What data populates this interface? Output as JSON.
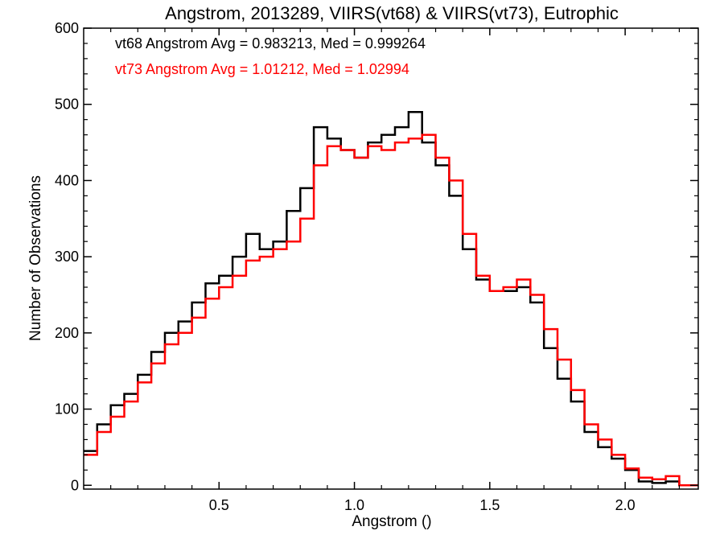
{
  "chart_data": {
    "type": "line",
    "title": "Angstrom, 2013289, VIIRS(vt68) & VIIRS(vt73), Eutrophic",
    "xlabel": "Angstrom ()",
    "ylabel": "Number of Observations",
    "xlim": [
      0.0,
      2.27
    ],
    "ylim": [
      -5,
      600
    ],
    "x_ticks": [
      0.5,
      1.0,
      1.5,
      2.0
    ],
    "x_tick_labels": [
      "0.5",
      "1.0",
      "1.5",
      "2.0"
    ],
    "y_ticks": [
      0,
      100,
      200,
      300,
      400,
      500,
      600
    ],
    "y_tick_labels": [
      "0",
      "100",
      "200",
      "300",
      "400",
      "500",
      "600"
    ],
    "grid": false,
    "annotations": [
      {
        "text": "vt68 Angstrom Avg = 0.983213, Med = 0.999264",
        "color": "#000000"
      },
      {
        "text": "vt73 Angstrom Avg = 1.01212, Med = 1.02994",
        "color": "#ff0000"
      }
    ],
    "series": [
      {
        "color": "#000000",
        "x": [
          0.0,
          0.05,
          0.1,
          0.15,
          0.2,
          0.25,
          0.3,
          0.35,
          0.4,
          0.45,
          0.5,
          0.55,
          0.6,
          0.65,
          0.7,
          0.75,
          0.8,
          0.85,
          0.9,
          0.95,
          1.0,
          1.05,
          1.1,
          1.15,
          1.2,
          1.25,
          1.3,
          1.35,
          1.4,
          1.45,
          1.5,
          1.55,
          1.6,
          1.65,
          1.7,
          1.75,
          1.8,
          1.85,
          1.9,
          1.95,
          2.0,
          2.05,
          2.1,
          2.15,
          2.2,
          2.25
        ],
        "y": [
          45,
          80,
          105,
          120,
          145,
          175,
          200,
          215,
          240,
          265,
          275,
          300,
          330,
          310,
          320,
          360,
          390,
          470,
          455,
          440,
          430,
          450,
          460,
          470,
          490,
          450,
          420,
          380,
          310,
          270,
          255,
          255,
          260,
          240,
          180,
          140,
          110,
          70,
          50,
          35,
          20,
          5,
          3,
          5,
          0,
          0
        ]
      },
      {
        "color": "#ff0000",
        "x": [
          0.0,
          0.05,
          0.1,
          0.15,
          0.2,
          0.25,
          0.3,
          0.35,
          0.4,
          0.45,
          0.5,
          0.55,
          0.6,
          0.65,
          0.7,
          0.75,
          0.8,
          0.85,
          0.9,
          0.95,
          1.0,
          1.05,
          1.1,
          1.15,
          1.2,
          1.25,
          1.3,
          1.35,
          1.4,
          1.45,
          1.5,
          1.55,
          1.6,
          1.65,
          1.7,
          1.75,
          1.8,
          1.85,
          1.9,
          1.95,
          2.0,
          2.05,
          2.1,
          2.15,
          2.2,
          2.25
        ],
        "y": [
          40,
          70,
          90,
          110,
          135,
          160,
          185,
          200,
          220,
          245,
          260,
          275,
          295,
          300,
          310,
          320,
          350,
          420,
          445,
          440,
          430,
          445,
          440,
          450,
          455,
          460,
          430,
          400,
          330,
          275,
          255,
          260,
          270,
          250,
          205,
          165,
          125,
          80,
          60,
          40,
          22,
          10,
          8,
          12,
          0,
          0
        ]
      }
    ]
  }
}
